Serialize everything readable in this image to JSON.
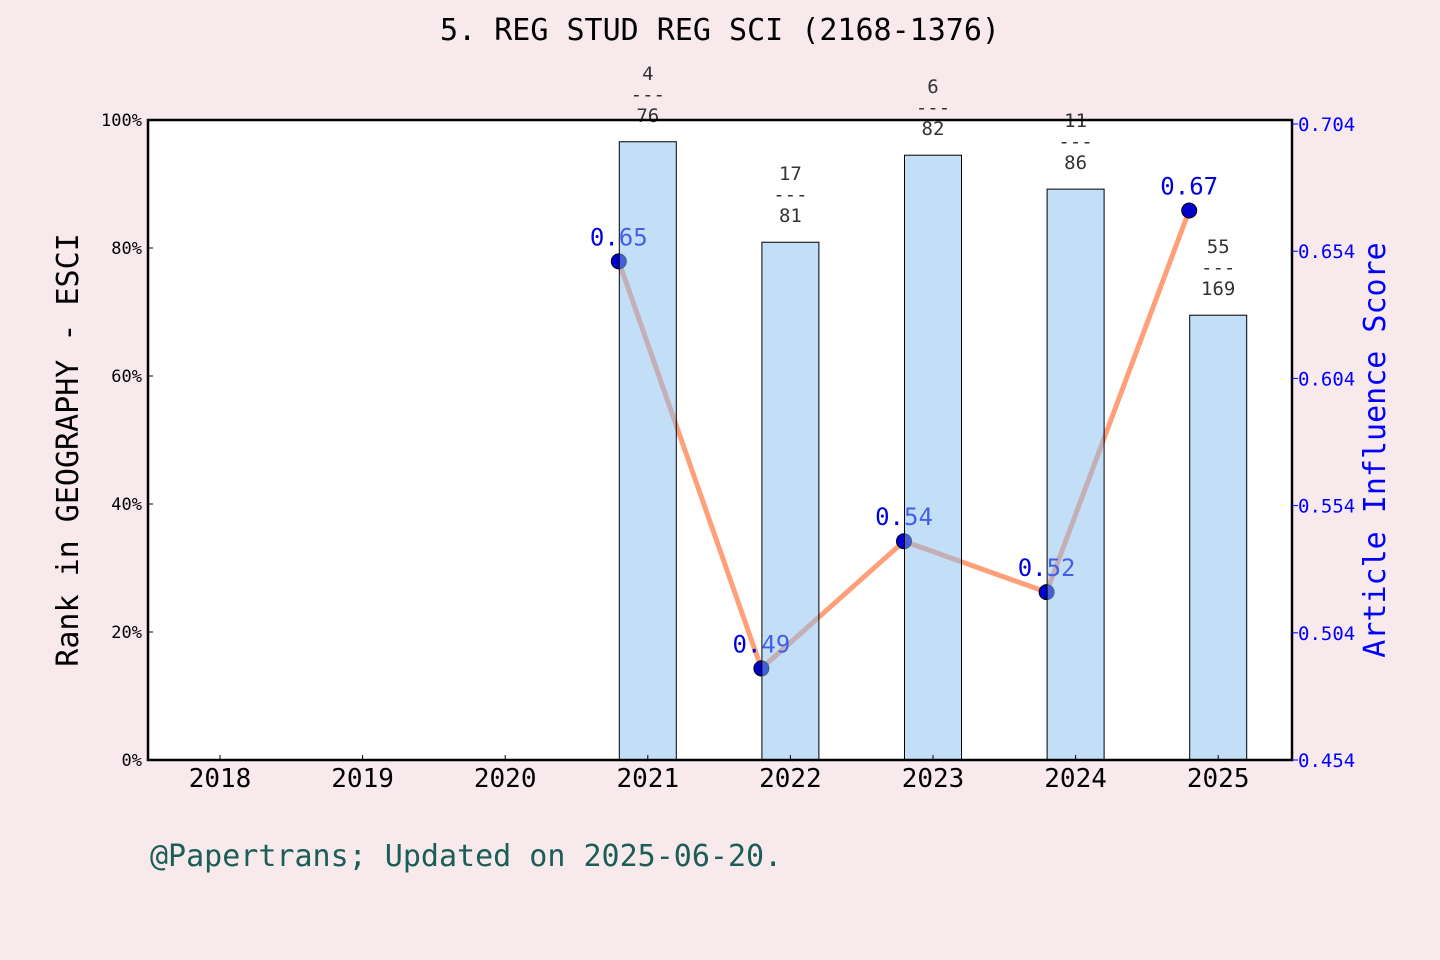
{
  "chart_data": {
    "type": "bar+line",
    "title": "5. REG STUD REG SCI (2168-1376)",
    "categories": [
      "2018",
      "2019",
      "2020",
      "2021",
      "2022",
      "2023",
      "2024",
      "2025"
    ],
    "ylabel": "Rank in GEOGRAPHY - ESCI",
    "ylabel_right": "Article Influence Score",
    "ylim": [
      0,
      100
    ],
    "yticks": [
      "0%",
      "20%",
      "40%",
      "60%",
      "80%",
      "100%"
    ],
    "ylim_right": [
      0.454,
      0.704
    ],
    "yticks_right": [
      "0.454",
      "0.504",
      "0.554",
      "0.604",
      "0.654",
      "0.704"
    ],
    "bars": [
      {
        "year": "2021",
        "percent": 96.6,
        "rank": "4",
        "total": "76"
      },
      {
        "year": "2022",
        "percent": 80.9,
        "rank": "17",
        "total": "81"
      },
      {
        "year": "2023",
        "percent": 94.5,
        "rank": "6",
        "total": "82"
      },
      {
        "year": "2024",
        "percent": 89.2,
        "rank": "11",
        "total": "86"
      },
      {
        "year": "2025",
        "percent": 69.5,
        "rank": "55",
        "total": "169"
      }
    ],
    "line": [
      {
        "year": "2021",
        "value": 0.65,
        "label": "0.65"
      },
      {
        "year": "2022",
        "value": 0.49,
        "label": "0.49"
      },
      {
        "year": "2023",
        "value": 0.54,
        "label": "0.54"
      },
      {
        "year": "2024",
        "value": 0.52,
        "label": "0.52"
      },
      {
        "year": "2025",
        "value": 0.67,
        "label": "0.67"
      }
    ],
    "colors": {
      "bar": "#c5e0f7",
      "line": "#ffa07a",
      "marker": "#0000cc",
      "right_axis": "#0000ff",
      "footer": "#1a5e55",
      "background": "#f7e9ec"
    },
    "grid": false
  },
  "footer": "@Papertrans; Updated on 2025-06-20."
}
